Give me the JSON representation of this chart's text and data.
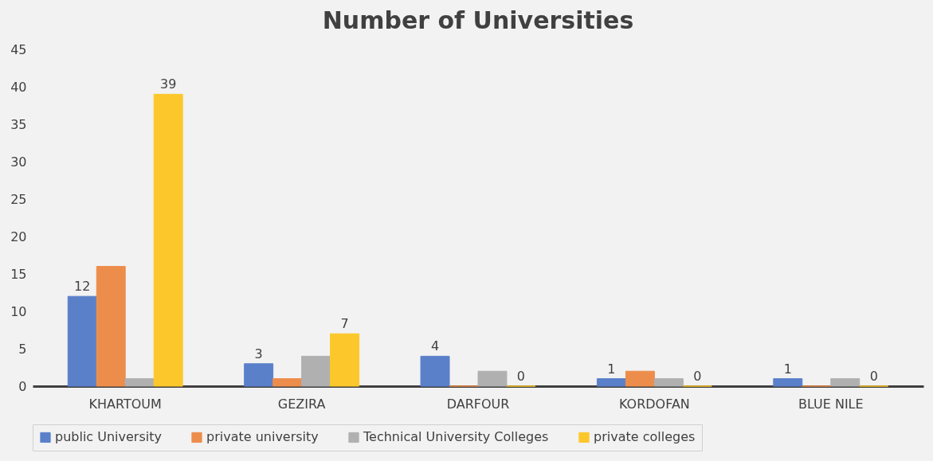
{
  "chart_data": {
    "type": "bar",
    "title": "Number of Universities",
    "categories": [
      "KHARTOUM",
      "GEZIRA",
      "DARFOUR",
      "KORDOFAN",
      "BLUE NILE"
    ],
    "series": [
      {
        "name": "public University",
        "color": "#5b80ca",
        "values": [
          12,
          3,
          4,
          1,
          1
        ],
        "value_labels": [
          "12",
          "3",
          "4",
          "1",
          "1"
        ]
      },
      {
        "name": "private university",
        "color": "#ed8d4c",
        "values": [
          16,
          1,
          0,
          2,
          0
        ]
      },
      {
        "name": "Technical University Colleges",
        "color": "#b0b0b0",
        "values": [
          1,
          4,
          2,
          1,
          1
        ]
      },
      {
        "name": "private colleges",
        "color": "#fcc72a",
        "values": [
          39,
          7,
          0,
          0,
          0
        ],
        "value_labels": [
          "39",
          "7",
          "0",
          "0",
          "0"
        ]
      }
    ],
    "ylim": [
      0,
      45
    ],
    "yticks": [
      0,
      5,
      10,
      15,
      20,
      25,
      30,
      35,
      40,
      45
    ],
    "grid": false,
    "legend": "bottom"
  }
}
